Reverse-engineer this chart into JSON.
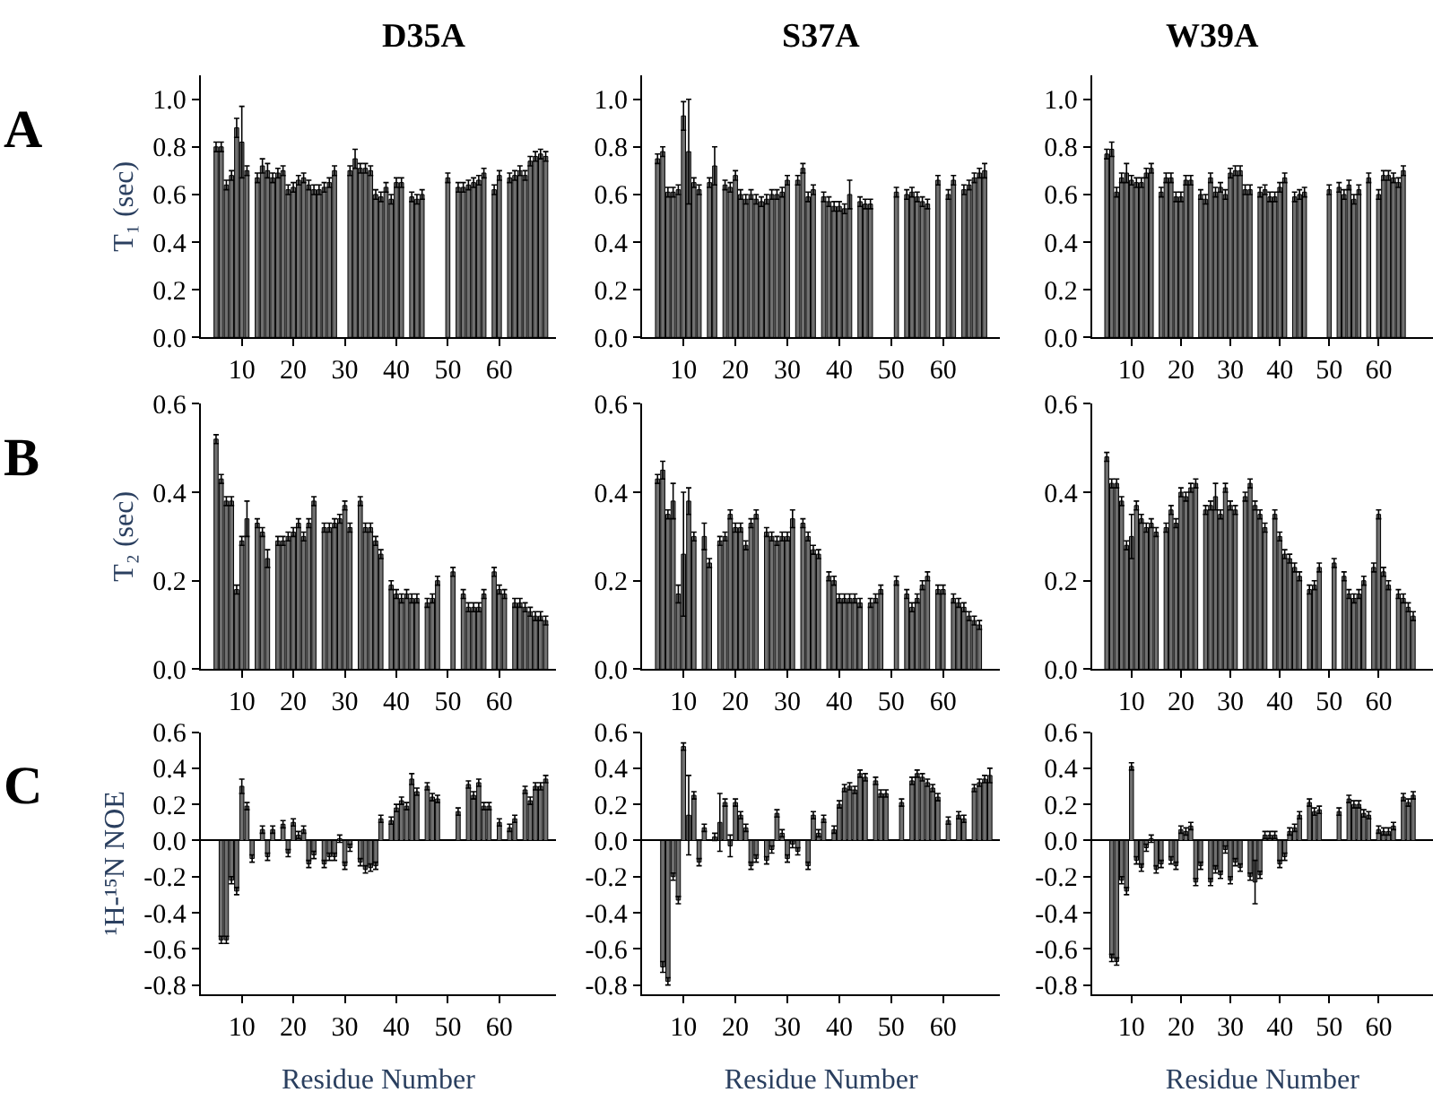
{
  "chart_data": [
    {
      "type": "bar",
      "title": "D35A",
      "ylabel": "T₁ (sec)",
      "annotations": [
        "A"
      ],
      "color": "#707070",
      "xlim": [
        2,
        71
      ],
      "xticks": [
        10,
        20,
        30,
        40,
        50,
        60
      ],
      "ylim": [
        0,
        1.1
      ],
      "yticks": [
        {
          "value": 0,
          "label": "0.0"
        },
        {
          "value": 0.2,
          "label": "0.2"
        },
        {
          "value": 0.4,
          "label": "0.4"
        },
        {
          "value": 0.6,
          "label": "0.6"
        },
        {
          "value": 0.8,
          "label": "0.8"
        },
        {
          "value": 1.0,
          "label": "1.0"
        }
      ],
      "x": [
        5,
        6,
        7,
        8,
        9,
        10,
        11,
        12,
        13,
        14,
        15,
        16,
        17,
        18,
        19,
        20,
        21,
        22,
        23,
        24,
        25,
        26,
        27,
        28,
        29,
        30,
        31,
        32,
        33,
        34,
        35,
        36,
        37,
        38,
        39,
        40,
        41,
        42,
        43,
        44,
        45,
        46,
        47,
        48,
        49,
        50,
        51,
        52,
        53,
        54,
        55,
        56,
        57,
        58,
        59,
        60,
        61,
        62,
        63,
        64,
        65,
        66,
        67,
        68,
        69
      ],
      "values": [
        0.8,
        0.8,
        0.64,
        0.68,
        0.88,
        0.82,
        0.7,
        null,
        0.67,
        0.72,
        0.7,
        0.67,
        0.69,
        0.7,
        0.62,
        0.63,
        0.66,
        0.67,
        0.64,
        0.62,
        0.62,
        0.63,
        0.65,
        0.7,
        null,
        null,
        0.7,
        0.75,
        0.71,
        0.71,
        0.7,
        0.6,
        0.59,
        0.63,
        0.58,
        0.65,
        0.65,
        null,
        0.59,
        0.58,
        0.6,
        null,
        null,
        null,
        null,
        0.67,
        null,
        0.63,
        0.63,
        0.64,
        0.65,
        0.66,
        0.69,
        null,
        0.62,
        0.68,
        null,
        0.67,
        0.68,
        0.7,
        0.68,
        0.74,
        0.76,
        0.77,
        0.76
      ],
      "errors": [
        0.02,
        0.02,
        0.02,
        0.02,
        0.04,
        0.15,
        0.02,
        null,
        0.02,
        0.03,
        0.03,
        0.02,
        0.02,
        0.02,
        0.02,
        0.02,
        0.02,
        0.02,
        0.02,
        0.02,
        0.02,
        0.02,
        0.02,
        0.02,
        null,
        null,
        0.02,
        0.04,
        0.02,
        0.02,
        0.02,
        0.02,
        0.02,
        0.02,
        0.02,
        0.02,
        0.02,
        null,
        0.02,
        0.02,
        0.02,
        null,
        null,
        null,
        null,
        0.02,
        null,
        0.02,
        0.02,
        0.02,
        0.02,
        0.02,
        0.02,
        null,
        0.02,
        0.02,
        null,
        0.02,
        0.02,
        0.02,
        0.02,
        0.02,
        0.02,
        0.02,
        0.02
      ]
    },
    {
      "type": "bar",
      "title": "S37A",
      "color": "#707070",
      "xlim": [
        2,
        71
      ],
      "xticks": [
        10,
        20,
        30,
        40,
        50,
        60
      ],
      "ylim": [
        0,
        1.1
      ],
      "yticks": [
        {
          "value": 0,
          "label": "0.0"
        },
        {
          "value": 0.2,
          "label": "0.2"
        },
        {
          "value": 0.4,
          "label": "0.4"
        },
        {
          "value": 0.6,
          "label": "0.6"
        },
        {
          "value": 0.8,
          "label": "0.8"
        },
        {
          "value": 1.0,
          "label": "1.0"
        }
      ],
      "x": [
        5,
        6,
        7,
        8,
        9,
        10,
        11,
        12,
        13,
        14,
        15,
        16,
        17,
        18,
        19,
        20,
        21,
        22,
        23,
        24,
        25,
        26,
        27,
        28,
        29,
        30,
        31,
        32,
        33,
        34,
        35,
        36,
        37,
        38,
        39,
        40,
        41,
        42,
        43,
        44,
        45,
        46,
        47,
        48,
        49,
        50,
        51,
        52,
        53,
        54,
        55,
        56,
        57,
        58,
        59,
        60,
        61,
        62,
        63,
        64,
        65,
        66,
        67,
        68
      ],
      "values": [
        0.75,
        0.78,
        0.61,
        0.61,
        0.62,
        0.93,
        0.78,
        0.65,
        0.62,
        null,
        0.65,
        0.72,
        null,
        0.64,
        0.63,
        0.68,
        0.6,
        0.58,
        0.6,
        0.58,
        0.57,
        0.58,
        0.6,
        0.6,
        0.61,
        0.66,
        null,
        0.66,
        0.71,
        0.59,
        0.62,
        null,
        0.59,
        0.57,
        0.55,
        0.55,
        0.54,
        0.6,
        null,
        0.57,
        0.56,
        0.56,
        null,
        null,
        null,
        null,
        0.61,
        null,
        0.6,
        0.61,
        0.59,
        0.57,
        0.56,
        null,
        0.66,
        null,
        0.6,
        0.66,
        null,
        0.62,
        0.64,
        0.67,
        0.69,
        0.7
      ],
      "errors": [
        0.02,
        0.02,
        0.02,
        0.02,
        0.02,
        0.06,
        0.22,
        0.02,
        0.02,
        null,
        0.02,
        0.08,
        null,
        0.02,
        0.02,
        0.02,
        0.02,
        0.02,
        0.02,
        0.02,
        0.02,
        0.02,
        0.02,
        0.02,
        0.02,
        0.02,
        null,
        0.02,
        0.02,
        0.02,
        0.02,
        null,
        0.02,
        0.02,
        0.02,
        0.02,
        0.02,
        0.06,
        null,
        0.02,
        0.02,
        0.02,
        null,
        null,
        null,
        null,
        0.02,
        null,
        0.02,
        0.02,
        0.02,
        0.02,
        0.02,
        null,
        0.02,
        null,
        0.02,
        0.02,
        null,
        0.02,
        0.02,
        0.02,
        0.02,
        0.03
      ]
    },
    {
      "type": "bar",
      "title": "W39A",
      "color": "#707070",
      "xlim": [
        2,
        71
      ],
      "xticks": [
        10,
        20,
        30,
        40,
        50,
        60
      ],
      "ylim": [
        0,
        1.1
      ],
      "yticks": [
        {
          "value": 0,
          "label": "0.0"
        },
        {
          "value": 0.2,
          "label": "0.2"
        },
        {
          "value": 0.4,
          "label": "0.4"
        },
        {
          "value": 0.6,
          "label": "0.6"
        },
        {
          "value": 0.8,
          "label": "0.8"
        },
        {
          "value": 1.0,
          "label": "1.0"
        }
      ],
      "x": [
        5,
        6,
        7,
        8,
        9,
        10,
        11,
        12,
        13,
        14,
        15,
        16,
        17,
        18,
        19,
        20,
        21,
        22,
        23,
        24,
        25,
        26,
        27,
        28,
        29,
        30,
        31,
        32,
        33,
        34,
        35,
        36,
        37,
        38,
        39,
        40,
        41,
        42,
        43,
        44,
        45,
        46,
        47,
        48,
        49,
        50,
        51,
        52,
        53,
        54,
        55,
        56,
        57,
        58,
        59,
        60,
        61,
        62,
        63,
        64,
        65
      ],
      "values": [
        0.77,
        0.79,
        0.61,
        0.67,
        0.69,
        0.66,
        0.65,
        0.65,
        0.69,
        0.71,
        null,
        0.61,
        0.67,
        0.67,
        0.59,
        0.59,
        0.66,
        0.66,
        null,
        0.6,
        0.58,
        0.67,
        0.61,
        0.63,
        0.6,
        0.69,
        0.7,
        0.7,
        0.62,
        0.62,
        null,
        0.61,
        0.62,
        0.59,
        0.59,
        0.63,
        0.67,
        null,
        0.59,
        0.6,
        0.61,
        null,
        null,
        null,
        null,
        0.62,
        null,
        0.63,
        0.6,
        0.64,
        0.58,
        0.62,
        null,
        0.67,
        null,
        0.6,
        0.68,
        0.68,
        0.67,
        0.65,
        0.7
      ],
      "errors": [
        0.02,
        0.03,
        0.02,
        0.02,
        0.04,
        0.02,
        0.02,
        0.02,
        0.02,
        0.02,
        null,
        0.02,
        0.02,
        0.02,
        0.02,
        0.02,
        0.02,
        0.02,
        null,
        0.02,
        0.02,
        0.02,
        0.02,
        0.02,
        0.02,
        0.02,
        0.02,
        0.02,
        0.02,
        0.02,
        null,
        0.02,
        0.02,
        0.02,
        0.02,
        0.02,
        0.02,
        null,
        0.02,
        0.02,
        0.02,
        null,
        null,
        null,
        null,
        0.02,
        null,
        0.02,
        0.02,
        0.02,
        0.02,
        0.02,
        null,
        0.02,
        null,
        0.02,
        0.02,
        0.02,
        0.02,
        0.02,
        0.02
      ]
    },
    {
      "type": "bar",
      "ylabel": "T₂ (sec)",
      "annotations": [
        "B"
      ],
      "color": "#707070",
      "xlim": [
        2,
        71
      ],
      "xticks": [
        10,
        20,
        30,
        40,
        50,
        60
      ],
      "ylim": [
        0,
        0.6
      ],
      "yticks": [
        {
          "value": 0,
          "label": "0.0"
        },
        {
          "value": 0.2,
          "label": "0.2"
        },
        {
          "value": 0.4,
          "label": "0.4"
        },
        {
          "value": 0.6,
          "label": "0.6"
        }
      ],
      "x": [
        5,
        6,
        7,
        8,
        9,
        10,
        11,
        12,
        13,
        14,
        15,
        16,
        17,
        18,
        19,
        20,
        21,
        22,
        23,
        24,
        25,
        26,
        27,
        28,
        29,
        30,
        31,
        32,
        33,
        34,
        35,
        36,
        37,
        38,
        39,
        40,
        41,
        42,
        43,
        44,
        45,
        46,
        47,
        48,
        49,
        50,
        51,
        52,
        53,
        54,
        55,
        56,
        57,
        58,
        59,
        60,
        61,
        62,
        63,
        64,
        65,
        66,
        67,
        68,
        69
      ],
      "values": [
        0.52,
        0.43,
        0.38,
        0.38,
        0.18,
        0.29,
        0.34,
        null,
        0.33,
        0.31,
        0.25,
        null,
        0.29,
        0.29,
        0.3,
        0.31,
        0.33,
        0.3,
        0.33,
        0.38,
        null,
        0.32,
        0.32,
        0.33,
        0.34,
        0.37,
        0.32,
        null,
        0.38,
        0.32,
        0.32,
        0.29,
        0.26,
        null,
        0.19,
        0.17,
        0.16,
        0.17,
        0.16,
        0.16,
        null,
        0.15,
        0.16,
        0.2,
        null,
        null,
        0.22,
        null,
        0.17,
        0.14,
        0.14,
        0.14,
        0.17,
        null,
        0.22,
        0.18,
        0.17,
        null,
        0.15,
        0.15,
        0.14,
        0.13,
        0.12,
        0.12,
        0.11
      ],
      "errors": [
        0.01,
        0.01,
        0.01,
        0.01,
        0.01,
        0.01,
        0.04,
        null,
        0.01,
        0.01,
        0.02,
        null,
        0.01,
        0.01,
        0.01,
        0.01,
        0.01,
        0.01,
        0.01,
        0.01,
        null,
        0.01,
        0.01,
        0.01,
        0.01,
        0.01,
        0.01,
        null,
        0.01,
        0.01,
        0.01,
        0.01,
        0.01,
        null,
        0.01,
        0.01,
        0.01,
        0.01,
        0.01,
        0.01,
        null,
        0.01,
        0.01,
        0.01,
        null,
        null,
        0.01,
        null,
        0.01,
        0.01,
        0.01,
        0.01,
        0.01,
        null,
        0.01,
        0.01,
        0.01,
        null,
        0.01,
        0.01,
        0.01,
        0.01,
        0.01,
        0.01,
        0.01
      ]
    },
    {
      "type": "bar",
      "color": "#707070",
      "xlim": [
        2,
        71
      ],
      "xticks": [
        10,
        20,
        30,
        40,
        50,
        60
      ],
      "ylim": [
        0,
        0.6
      ],
      "yticks": [
        {
          "value": 0,
          "label": "0.0"
        },
        {
          "value": 0.2,
          "label": "0.2"
        },
        {
          "value": 0.4,
          "label": "0.4"
        },
        {
          "value": 0.6,
          "label": "0.6"
        }
      ],
      "x": [
        5,
        6,
        7,
        8,
        9,
        10,
        11,
        12,
        13,
        14,
        15,
        16,
        17,
        18,
        19,
        20,
        21,
        22,
        23,
        24,
        25,
        26,
        27,
        28,
        29,
        30,
        31,
        32,
        33,
        34,
        35,
        36,
        37,
        38,
        39,
        40,
        41,
        42,
        43,
        44,
        45,
        46,
        47,
        48,
        49,
        50,
        51,
        52,
        53,
        54,
        55,
        56,
        57,
        58,
        59,
        60,
        61,
        62,
        63,
        64,
        65,
        66,
        67
      ],
      "values": [
        0.43,
        0.45,
        0.35,
        0.38,
        0.17,
        0.26,
        0.38,
        0.3,
        null,
        0.3,
        0.24,
        null,
        0.29,
        0.3,
        0.35,
        0.32,
        0.32,
        0.28,
        0.33,
        0.35,
        null,
        0.31,
        0.3,
        0.29,
        0.3,
        0.3,
        0.34,
        null,
        0.33,
        0.3,
        0.27,
        0.26,
        null,
        0.21,
        0.2,
        0.16,
        0.16,
        0.16,
        0.16,
        0.15,
        null,
        0.15,
        0.16,
        0.18,
        null,
        null,
        0.2,
        null,
        0.17,
        0.14,
        0.16,
        0.19,
        0.21,
        null,
        0.18,
        0.18,
        null,
        0.16,
        0.15,
        0.14,
        0.12,
        0.11,
        0.1
      ],
      "errors": [
        0.01,
        0.02,
        0.01,
        0.04,
        0.02,
        0.14,
        0.03,
        0.01,
        null,
        0.03,
        0.01,
        null,
        0.01,
        0.01,
        0.01,
        0.01,
        0.01,
        0.01,
        0.01,
        0.01,
        null,
        0.01,
        0.01,
        0.01,
        0.01,
        0.01,
        0.02,
        null,
        0.01,
        0.01,
        0.01,
        0.01,
        null,
        0.01,
        0.01,
        0.01,
        0.01,
        0.01,
        0.01,
        0.01,
        null,
        0.01,
        0.01,
        0.01,
        null,
        null,
        0.01,
        null,
        0.01,
        0.01,
        0.01,
        0.01,
        0.01,
        null,
        0.01,
        0.01,
        null,
        0.01,
        0.01,
        0.01,
        0.01,
        0.01,
        0.01
      ]
    },
    {
      "type": "bar",
      "color": "#707070",
      "xlim": [
        2,
        71
      ],
      "xticks": [
        10,
        20,
        30,
        40,
        50,
        60
      ],
      "ylim": [
        0,
        0.6
      ],
      "yticks": [
        {
          "value": 0,
          "label": "0.0"
        },
        {
          "value": 0.2,
          "label": "0.2"
        },
        {
          "value": 0.4,
          "label": "0.4"
        },
        {
          "value": 0.6,
          "label": "0.6"
        }
      ],
      "x": [
        5,
        6,
        7,
        8,
        9,
        10,
        11,
        12,
        13,
        14,
        15,
        16,
        17,
        18,
        19,
        20,
        21,
        22,
        23,
        24,
        25,
        26,
        27,
        28,
        29,
        30,
        31,
        32,
        33,
        34,
        35,
        36,
        37,
        38,
        39,
        40,
        41,
        42,
        43,
        44,
        45,
        46,
        47,
        48,
        49,
        50,
        51,
        52,
        53,
        54,
        55,
        56,
        57,
        58,
        59,
        60,
        61,
        62,
        63,
        64,
        65,
        66,
        67
      ],
      "values": [
        0.48,
        0.42,
        0.42,
        0.38,
        0.28,
        0.3,
        0.37,
        0.34,
        0.32,
        0.33,
        0.31,
        null,
        0.32,
        0.36,
        0.33,
        0.4,
        0.39,
        0.41,
        0.42,
        null,
        0.36,
        0.37,
        0.39,
        0.35,
        0.41,
        0.37,
        0.36,
        null,
        0.39,
        0.42,
        0.37,
        0.35,
        0.32,
        null,
        0.35,
        0.3,
        0.26,
        0.25,
        0.23,
        0.21,
        null,
        0.18,
        0.19,
        0.23,
        null,
        null,
        0.24,
        null,
        0.21,
        0.17,
        0.16,
        0.17,
        0.2,
        null,
        0.23,
        0.35,
        0.22,
        0.19,
        null,
        0.17,
        0.16,
        0.14,
        0.12
      ],
      "errors": [
        0.01,
        0.01,
        0.01,
        0.01,
        0.01,
        0.05,
        0.01,
        0.01,
        0.01,
        0.01,
        0.01,
        null,
        0.01,
        0.01,
        0.01,
        0.01,
        0.01,
        0.01,
        0.01,
        null,
        0.01,
        0.01,
        0.03,
        0.01,
        0.01,
        0.01,
        0.01,
        null,
        0.01,
        0.01,
        0.01,
        0.01,
        0.01,
        null,
        0.01,
        0.01,
        0.01,
        0.01,
        0.01,
        0.01,
        null,
        0.01,
        0.01,
        0.01,
        null,
        null,
        0.01,
        null,
        0.01,
        0.01,
        0.01,
        0.01,
        0.01,
        null,
        0.01,
        0.01,
        0.01,
        0.01,
        null,
        0.01,
        0.01,
        0.01,
        0.01
      ]
    },
    {
      "type": "bar",
      "ylabel": "¹H-¹⁵N NOE",
      "xlabel": "Residue Number",
      "annotations": [
        "C"
      ],
      "color": "#707070",
      "xlim": [
        2,
        71
      ],
      "xticks": [
        10,
        20,
        30,
        40,
        50,
        60
      ],
      "ylim": [
        -0.85,
        0.6
      ],
      "yticks": [
        {
          "value": -0.8,
          "label": "-0.8"
        },
        {
          "value": -0.6,
          "label": "-0.6"
        },
        {
          "value": -0.4,
          "label": "-0.4"
        },
        {
          "value": -0.2,
          "label": "-0.2"
        },
        {
          "value": 0,
          "label": "0.0"
        },
        {
          "value": 0.2,
          "label": "0.2"
        },
        {
          "value": 0.4,
          "label": "0.4"
        },
        {
          "value": 0.6,
          "label": "0.6"
        }
      ],
      "x": [
        6,
        7,
        8,
        9,
        10,
        11,
        12,
        13,
        14,
        15,
        16,
        17,
        18,
        19,
        20,
        21,
        22,
        23,
        24,
        25,
        26,
        27,
        28,
        29,
        30,
        31,
        32,
        33,
        34,
        35,
        36,
        37,
        38,
        39,
        40,
        41,
        42,
        43,
        44,
        45,
        46,
        47,
        48,
        49,
        50,
        51,
        52,
        53,
        54,
        55,
        56,
        57,
        58,
        59,
        60,
        61,
        62,
        63,
        64,
        65,
        66,
        67,
        68,
        69
      ],
      "values": [
        -0.55,
        -0.55,
        -0.22,
        -0.28,
        0.3,
        0.19,
        -0.1,
        null,
        0.06,
        -0.09,
        0.06,
        null,
        0.09,
        -0.07,
        0.1,
        0.03,
        0.06,
        -0.13,
        -0.08,
        null,
        -0.13,
        -0.09,
        -0.09,
        0.01,
        -0.14,
        -0.04,
        null,
        -0.12,
        -0.16,
        -0.15,
        -0.14,
        0.12,
        null,
        0.11,
        0.18,
        0.22,
        0.19,
        0.34,
        0.27,
        null,
        0.3,
        0.24,
        0.23,
        null,
        null,
        null,
        0.16,
        null,
        0.31,
        0.25,
        0.32,
        0.19,
        0.19,
        null,
        0.1,
        null,
        0.07,
        0.12,
        null,
        0.28,
        0.22,
        0.3,
        0.3,
        0.34
      ],
      "errors": [
        0.02,
        0.02,
        0.02,
        0.02,
        0.04,
        0.02,
        0.02,
        null,
        0.02,
        0.02,
        0.02,
        null,
        0.02,
        0.02,
        0.02,
        0.02,
        0.02,
        0.02,
        0.02,
        null,
        0.02,
        0.02,
        0.02,
        0.02,
        0.02,
        0.02,
        null,
        0.02,
        0.02,
        0.02,
        0.02,
        0.02,
        null,
        0.02,
        0.02,
        0.02,
        0.02,
        0.03,
        0.02,
        null,
        0.02,
        0.02,
        0.02,
        null,
        null,
        null,
        0.02,
        null,
        0.02,
        0.02,
        0.02,
        0.02,
        0.02,
        null,
        0.02,
        null,
        0.02,
        0.02,
        null,
        0.02,
        0.02,
        0.02,
        0.02,
        0.02
      ]
    },
    {
      "type": "bar",
      "xlabel": "Residue Number",
      "color": "#707070",
      "xlim": [
        2,
        71
      ],
      "xticks": [
        10,
        20,
        30,
        40,
        50,
        60
      ],
      "ylim": [
        -0.85,
        0.6
      ],
      "yticks": [
        {
          "value": -0.8,
          "label": "-0.8"
        },
        {
          "value": -0.6,
          "label": "-0.6"
        },
        {
          "value": -0.4,
          "label": "-0.4"
        },
        {
          "value": -0.2,
          "label": "-0.2"
        },
        {
          "value": 0,
          "label": "0.0"
        },
        {
          "value": 0.2,
          "label": "0.2"
        },
        {
          "value": 0.4,
          "label": "0.4"
        },
        {
          "value": 0.6,
          "label": "0.6"
        }
      ],
      "x": [
        6,
        7,
        8,
        9,
        10,
        11,
        12,
        13,
        14,
        15,
        16,
        17,
        18,
        19,
        20,
        21,
        22,
        23,
        24,
        25,
        26,
        27,
        28,
        29,
        30,
        31,
        32,
        33,
        34,
        35,
        36,
        37,
        38,
        39,
        40,
        41,
        42,
        43,
        44,
        45,
        46,
        47,
        48,
        49,
        50,
        51,
        52,
        53,
        54,
        55,
        56,
        57,
        58,
        59,
        60,
        61,
        62,
        63,
        64,
        65,
        66,
        67,
        68,
        69
      ],
      "values": [
        -0.7,
        -0.78,
        -0.2,
        -0.33,
        0.52,
        0.14,
        0.25,
        -0.12,
        0.07,
        null,
        0.02,
        0.1,
        0.21,
        -0.03,
        0.21,
        0.14,
        0.07,
        -0.14,
        -0.1,
        null,
        -0.11,
        -0.05,
        0.15,
        0.04,
        -0.1,
        -0.02,
        -0.06,
        null,
        -0.14,
        0.14,
        0.04,
        0.12,
        null,
        0.06,
        0.2,
        0.29,
        0.3,
        0.28,
        0.37,
        0.35,
        null,
        0.33,
        0.26,
        0.26,
        null,
        null,
        0.21,
        null,
        0.33,
        0.37,
        0.35,
        0.32,
        0.29,
        0.24,
        null,
        0.11,
        null,
        0.14,
        0.12,
        null,
        0.29,
        0.32,
        0.34,
        0.36
      ],
      "errors": [
        0.03,
        0.02,
        0.02,
        0.02,
        0.02,
        0.22,
        0.02,
        0.02,
        0.02,
        null,
        0.02,
        0.16,
        0.02,
        0.06,
        0.02,
        0.02,
        0.02,
        0.02,
        0.02,
        null,
        0.02,
        0.02,
        0.02,
        0.02,
        0.02,
        0.02,
        0.02,
        null,
        0.02,
        0.02,
        0.02,
        0.02,
        null,
        0.02,
        0.02,
        0.02,
        0.02,
        0.02,
        0.02,
        0.02,
        null,
        0.02,
        0.02,
        0.02,
        null,
        null,
        0.02,
        null,
        0.02,
        0.02,
        0.02,
        0.02,
        0.02,
        0.02,
        null,
        0.02,
        null,
        0.02,
        0.02,
        null,
        0.02,
        0.02,
        0.02,
        0.04
      ]
    },
    {
      "type": "bar",
      "xlabel": "Residue Number",
      "color": "#707070",
      "xlim": [
        2,
        71
      ],
      "xticks": [
        10,
        20,
        30,
        40,
        50,
        60
      ],
      "ylim": [
        -0.85,
        0.6
      ],
      "yticks": [
        {
          "value": -0.8,
          "label": "-0.8"
        },
        {
          "value": -0.6,
          "label": "-0.6"
        },
        {
          "value": -0.4,
          "label": "-0.4"
        },
        {
          "value": -0.2,
          "label": "-0.2"
        },
        {
          "value": 0,
          "label": "0.0"
        },
        {
          "value": 0.2,
          "label": "0.2"
        },
        {
          "value": 0.4,
          "label": "0.4"
        },
        {
          "value": 0.6,
          "label": "0.6"
        }
      ],
      "x": [
        6,
        7,
        8,
        9,
        10,
        11,
        12,
        13,
        14,
        15,
        16,
        17,
        18,
        19,
        20,
        21,
        22,
        23,
        24,
        25,
        26,
        27,
        28,
        29,
        30,
        31,
        32,
        33,
        34,
        35,
        36,
        37,
        38,
        39,
        40,
        41,
        42,
        43,
        44,
        45,
        46,
        47,
        48,
        49,
        50,
        51,
        52,
        53,
        54,
        55,
        56,
        57,
        58,
        59,
        60,
        61,
        62,
        63,
        64,
        65,
        66,
        67
      ],
      "values": [
        -0.65,
        -0.67,
        -0.22,
        -0.28,
        0.41,
        -0.11,
        -0.15,
        -0.04,
        0.01,
        -0.16,
        -0.13,
        null,
        -0.11,
        -0.14,
        0.06,
        0.05,
        0.08,
        -0.23,
        -0.14,
        null,
        -0.23,
        -0.16,
        -0.19,
        -0.05,
        -0.22,
        -0.12,
        -0.15,
        null,
        -0.2,
        -0.23,
        -0.19,
        0.03,
        0.03,
        0.03,
        -0.13,
        -0.09,
        0.05,
        0.07,
        0.14,
        null,
        0.21,
        0.16,
        0.17,
        null,
        null,
        null,
        0.16,
        null,
        0.23,
        0.2,
        0.2,
        0.15,
        0.14,
        null,
        0.06,
        0.05,
        0.05,
        0.08,
        null,
        0.24,
        0.21,
        0.25
      ],
      "errors": [
        0.02,
        0.02,
        0.02,
        0.02,
        0.02,
        0.02,
        0.02,
        0.02,
        0.02,
        0.02,
        0.02,
        null,
        0.02,
        0.02,
        0.02,
        0.02,
        0.02,
        0.02,
        0.02,
        null,
        0.02,
        0.02,
        0.02,
        0.02,
        0.02,
        0.02,
        0.02,
        null,
        0.02,
        0.12,
        0.02,
        0.02,
        0.02,
        0.02,
        0.02,
        0.02,
        0.02,
        0.02,
        0.02,
        null,
        0.02,
        0.02,
        0.02,
        null,
        null,
        null,
        0.02,
        null,
        0.02,
        0.02,
        0.02,
        0.02,
        0.02,
        null,
        0.02,
        0.02,
        0.02,
        0.02,
        null,
        0.02,
        0.02,
        0.02
      ]
    }
  ]
}
